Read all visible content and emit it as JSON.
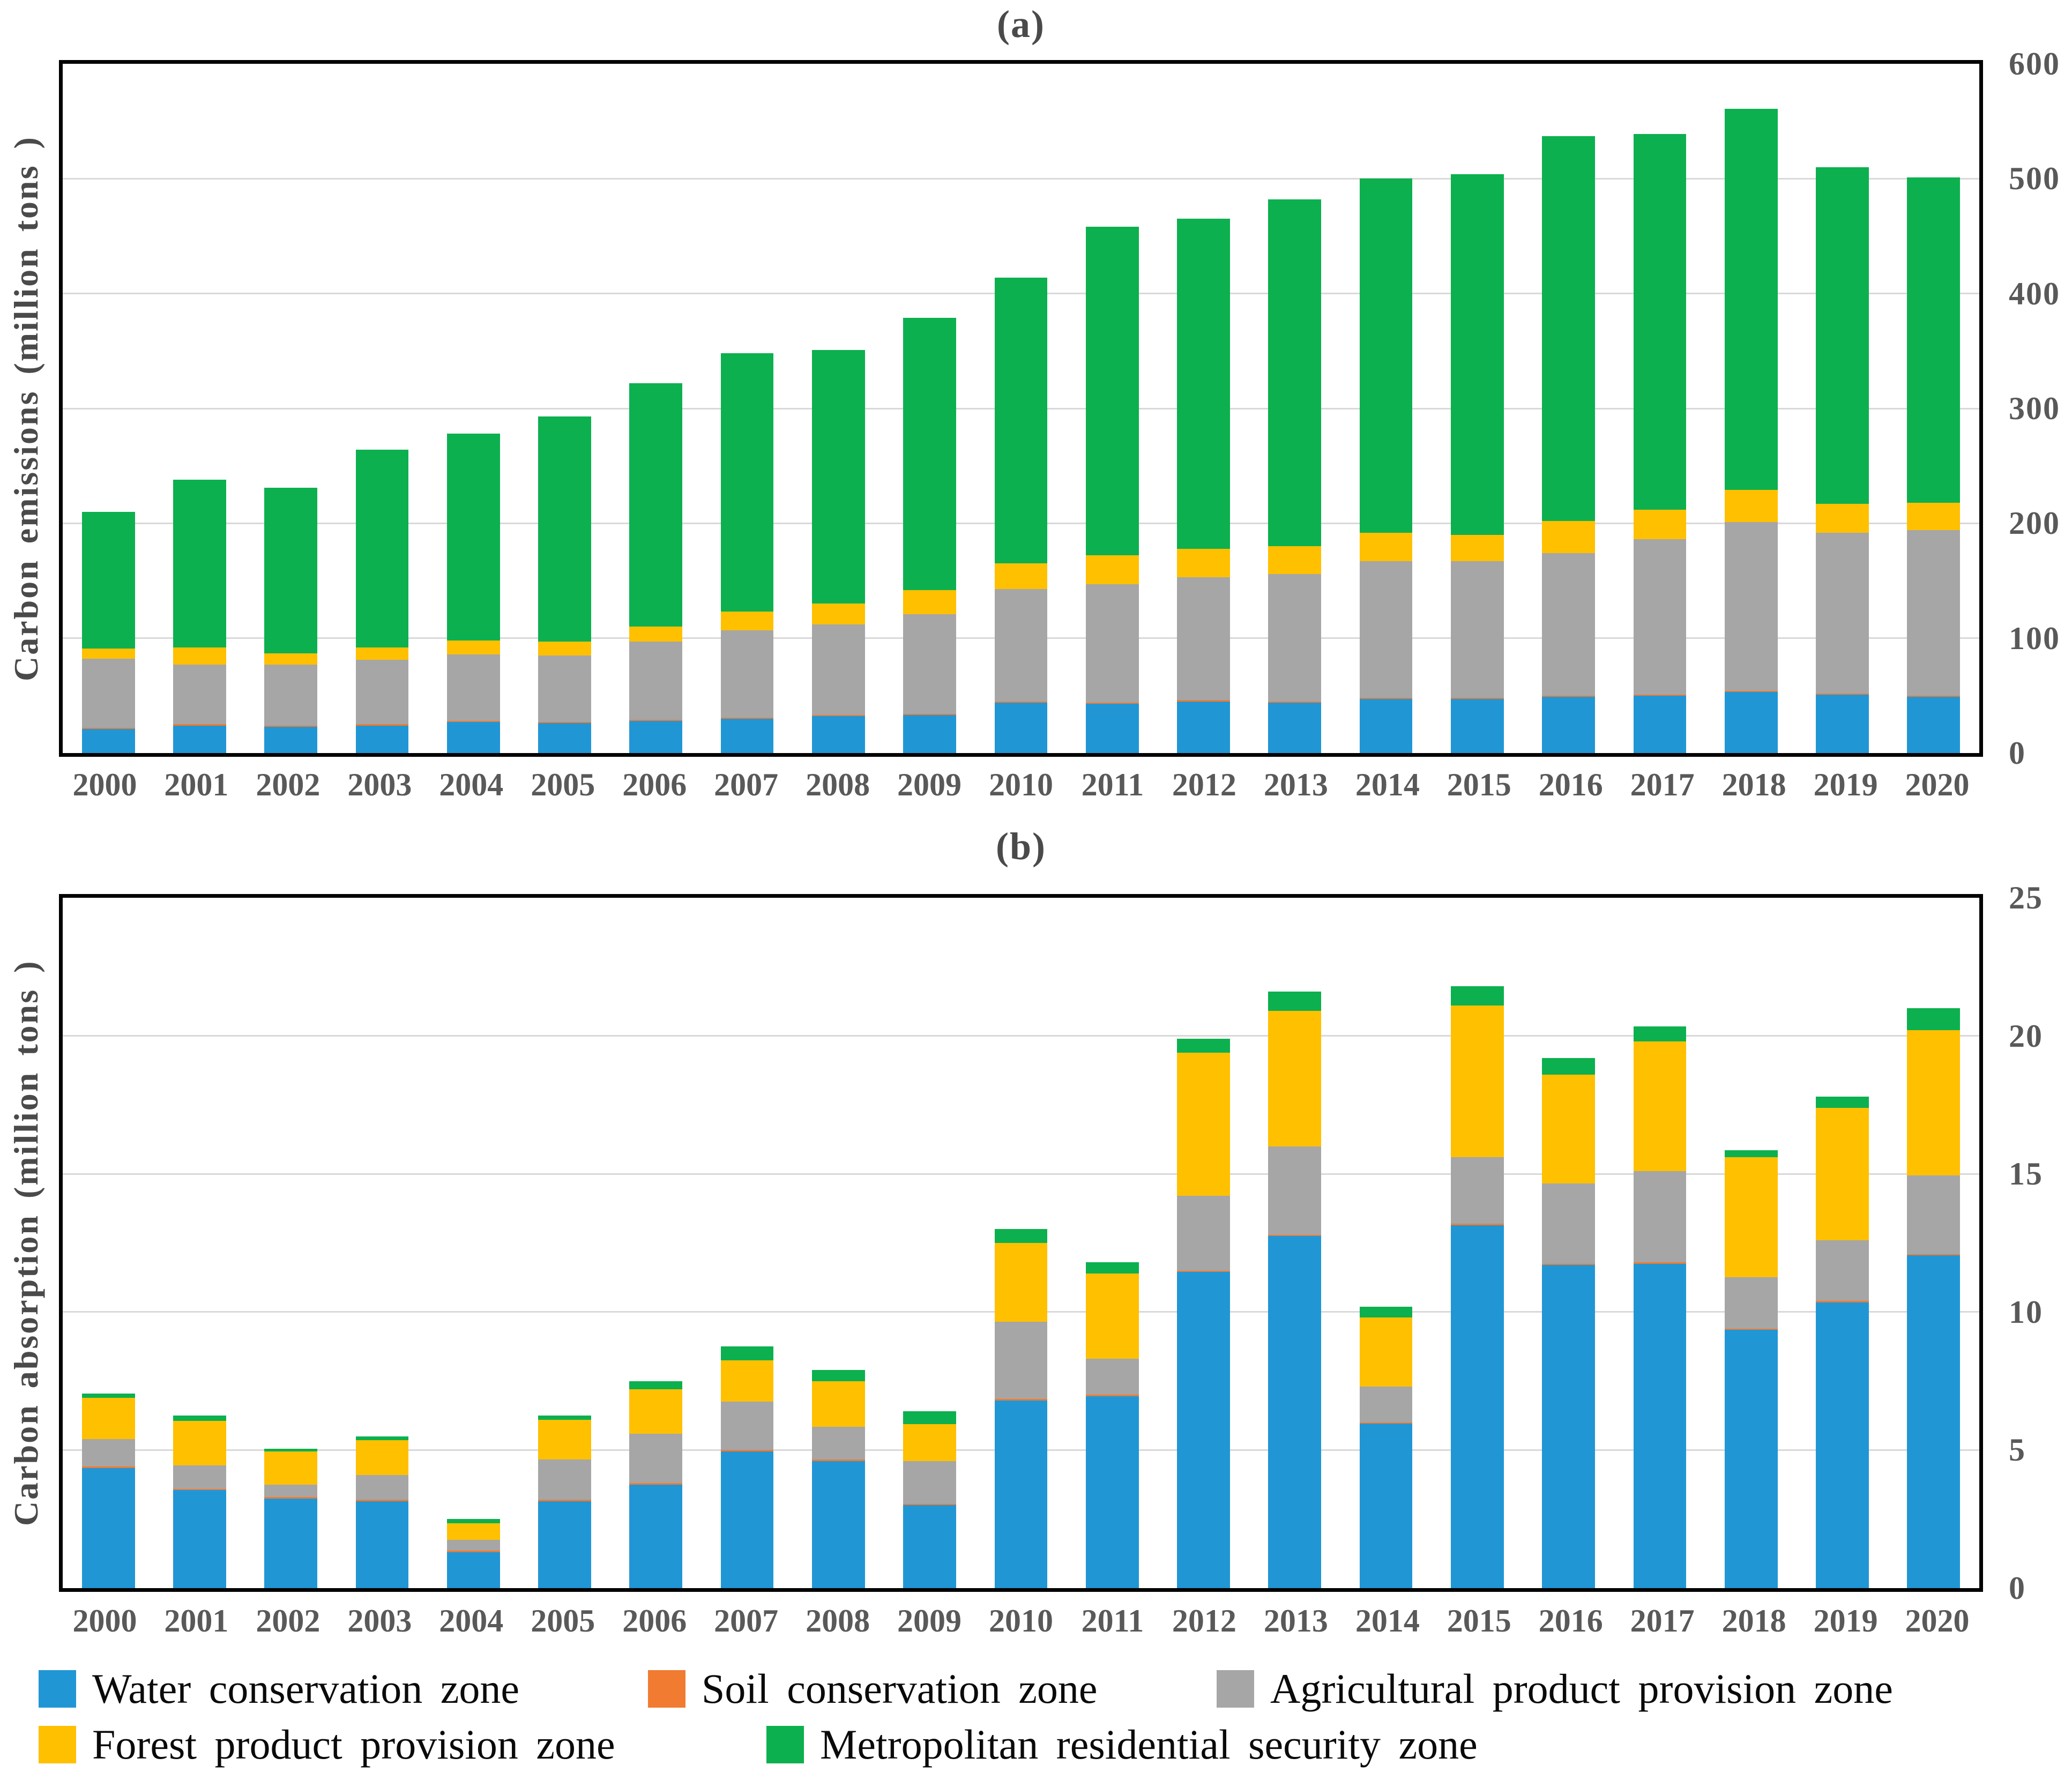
{
  "figure": {
    "panel_a_label": "(a)",
    "panel_b_label": "(b)"
  },
  "legend": {
    "items": [
      {
        "label": "Water conservation zone",
        "color": "#2196D5"
      },
      {
        "label": "Soil conservation zone",
        "color": "#F07B31"
      },
      {
        "label": "Agricultural product provision zone",
        "color": "#A6A6A6"
      },
      {
        "label": "Forest product provision zone",
        "color": "#FFC000"
      },
      {
        "label": "Metropolitan residential security zone",
        "color": "#0DB04F"
      }
    ]
  },
  "chart_data": [
    {
      "id": "a",
      "type": "bar",
      "stacked": true,
      "title": "(a)",
      "xlabel": "",
      "ylabel": "Carbon emissions (million tons )",
      "ylim": [
        0,
        600
      ],
      "yticks": [
        0,
        100,
        200,
        300,
        400,
        500,
        600
      ],
      "grid": true,
      "legend_position": "bottom",
      "categories": [
        "2000",
        "2001",
        "2002",
        "2003",
        "2004",
        "2005",
        "2006",
        "2007",
        "2008",
        "2009",
        "2010",
        "2011",
        "2012",
        "2013",
        "2014",
        "2015",
        "2016",
        "2017",
        "2018",
        "2019",
        "2020"
      ],
      "series": [
        {
          "name": "Water conservation zone",
          "color": "#2196D5",
          "values": [
            21,
            24,
            23,
            24,
            27,
            26,
            28,
            30,
            32,
            33,
            44,
            43,
            45,
            44,
            47,
            47,
            49,
            50,
            53,
            51,
            49
          ]
        },
        {
          "name": "Soil conservation zone",
          "color": "#F07B31",
          "values": [
            1,
            1,
            1,
            1,
            1,
            1,
            1,
            1,
            1,
            1,
            1,
            1,
            1,
            1,
            1,
            1,
            1,
            1,
            1,
            1,
            1
          ]
        },
        {
          "name": "Agricultural product provision zone",
          "color": "#A6A6A6",
          "values": [
            60,
            52,
            53,
            56,
            58,
            58,
            68,
            76,
            79,
            87,
            98,
            103,
            107,
            111,
            119,
            119,
            124,
            135,
            147,
            140,
            144
          ]
        },
        {
          "name": "Forest product provision zone",
          "color": "#FFC000",
          "values": [
            9,
            15,
            10,
            11,
            12,
            12,
            13,
            16,
            18,
            21,
            22,
            25,
            25,
            24,
            25,
            23,
            28,
            26,
            28,
            25,
            24
          ]
        },
        {
          "name": "Metropolitan residential security zone",
          "color": "#0DB04F",
          "values": [
            119,
            146,
            144,
            172,
            180,
            196,
            212,
            225,
            221,
            237,
            249,
            286,
            287,
            302,
            308,
            314,
            335,
            327,
            332,
            293,
            283
          ]
        }
      ]
    },
    {
      "id": "b",
      "type": "bar",
      "stacked": true,
      "title": "(b)",
      "xlabel": "",
      "ylabel": "Carbon absorption (million tons )",
      "ylim": [
        0,
        25
      ],
      "yticks": [
        0,
        5,
        10,
        15,
        20,
        25
      ],
      "grid": true,
      "legend_position": "bottom",
      "categories": [
        "2000",
        "2001",
        "2002",
        "2003",
        "2004",
        "2005",
        "2006",
        "2007",
        "2008",
        "2009",
        "2010",
        "2011",
        "2012",
        "2013",
        "2014",
        "2015",
        "2016",
        "2017",
        "2018",
        "2019",
        "2020"
      ],
      "series": [
        {
          "name": "Water conservation zone",
          "color": "#2196D5",
          "values": [
            4.35,
            3.55,
            3.25,
            3.15,
            1.3,
            3.15,
            3.75,
            4.95,
            4.6,
            3.0,
            6.8,
            6.95,
            11.45,
            12.75,
            5.95,
            13.15,
            11.7,
            11.75,
            9.35,
            10.35,
            12.05
          ]
        },
        {
          "name": "Soil conservation zone",
          "color": "#F07B31",
          "values": [
            0.05,
            0.05,
            0.05,
            0.05,
            0.05,
            0.05,
            0.05,
            0.05,
            0.05,
            0.05,
            0.05,
            0.05,
            0.05,
            0.05,
            0.05,
            0.05,
            0.05,
            0.05,
            0.05,
            0.05,
            0.05
          ]
        },
        {
          "name": "Agricultural product provision zone",
          "color": "#A6A6A6",
          "values": [
            1.0,
            0.85,
            0.45,
            0.9,
            0.4,
            1.45,
            1.8,
            1.75,
            1.2,
            1.55,
            2.8,
            1.3,
            2.7,
            3.2,
            1.3,
            2.4,
            2.9,
            3.3,
            1.85,
            2.2,
            2.85
          ]
        },
        {
          "name": "Forest product provision zone",
          "color": "#FFC000",
          "values": [
            1.5,
            1.6,
            1.2,
            1.25,
            0.6,
            1.45,
            1.6,
            1.5,
            1.65,
            1.35,
            2.85,
            3.1,
            5.2,
            4.9,
            2.5,
            5.5,
            3.95,
            4.7,
            4.35,
            4.8,
            5.25
          ]
        },
        {
          "name": "Metropolitan residential security zone",
          "color": "#0DB04F",
          "values": [
            0.15,
            0.2,
            0.1,
            0.15,
            0.15,
            0.15,
            0.3,
            0.5,
            0.4,
            0.45,
            0.5,
            0.4,
            0.5,
            0.7,
            0.4,
            0.7,
            0.6,
            0.55,
            0.25,
            0.4,
            0.8
          ]
        }
      ]
    }
  ]
}
